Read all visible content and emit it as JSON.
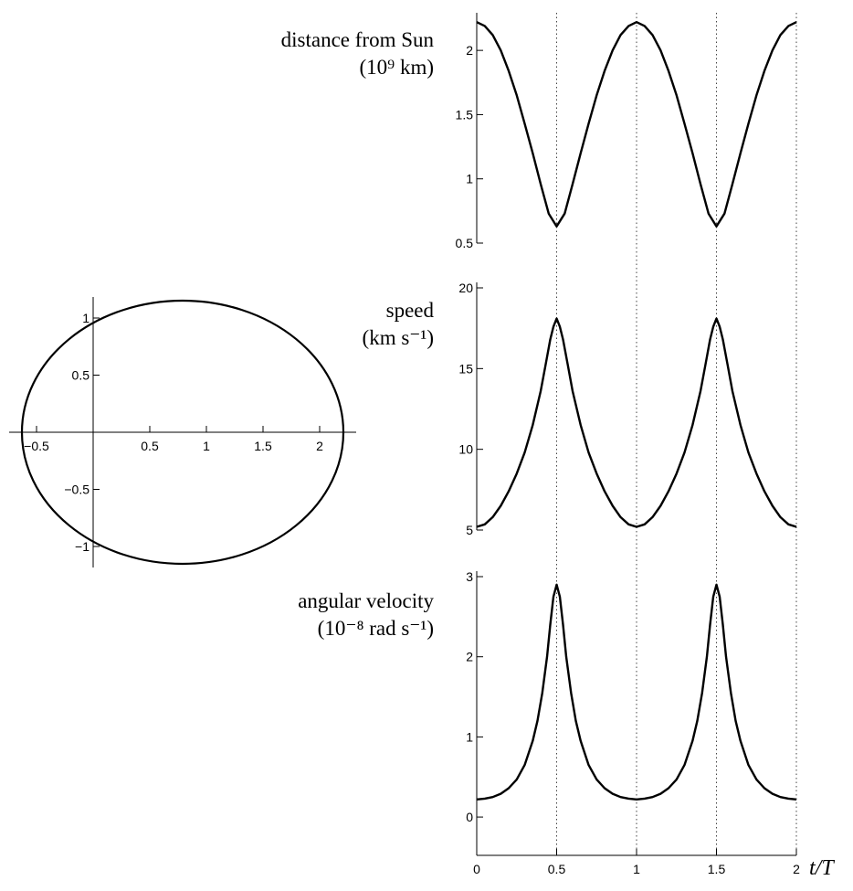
{
  "chart_data": [
    {
      "type": "line",
      "name": "orbit",
      "xlim": [
        -0.65,
        2.35
      ],
      "ylim": [
        -1.2,
        1.2
      ],
      "x_ticks": [
        -0.5,
        0.5,
        1,
        1.5,
        2
      ],
      "x_tick_labels": [
        "−0.5",
        "0.5",
        "1",
        "1.5",
        "2"
      ],
      "y_ticks": [
        -1,
        -0.5,
        0.5,
        1
      ],
      "y_tick_labels": [
        "−1",
        "−0.5",
        "0.5",
        "1"
      ],
      "ellipse": {
        "center_x": 0.8,
        "center_y": 0,
        "semi_major": 1.42,
        "semi_minor": 1.16
      }
    },
    {
      "type": "line",
      "name": "distance",
      "label_line1": "distance from Sun",
      "label_line2": "(10⁹ km)",
      "xlim": [
        0,
        2
      ],
      "ylim": [
        0.5,
        2.25
      ],
      "y_ticks": [
        0.5,
        1,
        1.5,
        2
      ],
      "y_tick_labels": [
        "0.5",
        "1",
        "1.5",
        "2"
      ],
      "x": [
        0,
        0.05,
        0.1,
        0.15,
        0.2,
        0.25,
        0.3,
        0.35,
        0.4,
        0.45,
        0.5,
        0.55,
        0.6,
        0.65,
        0.7,
        0.75,
        0.8,
        0.85,
        0.9,
        0.95,
        1.0,
        1.05,
        1.1,
        1.15,
        1.2,
        1.25,
        1.3,
        1.35,
        1.4,
        1.45,
        1.5,
        1.55,
        1.6,
        1.65,
        1.7,
        1.75,
        1.8,
        1.85,
        1.9,
        1.95,
        2.0
      ],
      "y": [
        2.22,
        2.19,
        2.12,
        2.0,
        1.84,
        1.65,
        1.43,
        1.2,
        0.96,
        0.73,
        0.63,
        0.73,
        0.96,
        1.2,
        1.43,
        1.65,
        1.84,
        2.0,
        2.12,
        2.19,
        2.22,
        2.19,
        2.12,
        2.0,
        1.84,
        1.65,
        1.43,
        1.2,
        0.96,
        0.73,
        0.63,
        0.73,
        0.96,
        1.2,
        1.43,
        1.65,
        1.84,
        2.0,
        2.12,
        2.19,
        2.22
      ]
    },
    {
      "type": "line",
      "name": "speed",
      "label_line1": "speed",
      "label_line2": "(km s⁻¹)",
      "xlim": [
        0,
        2
      ],
      "ylim": [
        5,
        20
      ],
      "y_ticks": [
        5,
        10,
        15,
        20
      ],
      "y_tick_labels": [
        "5",
        "10",
        "15",
        "20"
      ],
      "x": [
        0,
        0.05,
        0.1,
        0.15,
        0.2,
        0.25,
        0.3,
        0.35,
        0.4,
        0.43,
        0.46,
        0.48,
        0.5,
        0.52,
        0.54,
        0.57,
        0.6,
        0.65,
        0.7,
        0.75,
        0.8,
        0.85,
        0.9,
        0.95,
        1.0,
        1.05,
        1.1,
        1.15,
        1.2,
        1.25,
        1.3,
        1.35,
        1.4,
        1.43,
        1.46,
        1.48,
        1.5,
        1.52,
        1.54,
        1.57,
        1.6,
        1.65,
        1.7,
        1.75,
        1.8,
        1.85,
        1.9,
        1.95,
        2.0
      ],
      "y": [
        5.2,
        5.35,
        5.8,
        6.5,
        7.4,
        8.5,
        9.8,
        11.5,
        13.6,
        15.2,
        16.8,
        17.6,
        18.1,
        17.6,
        16.8,
        15.2,
        13.6,
        11.5,
        9.8,
        8.5,
        7.4,
        6.5,
        5.8,
        5.35,
        5.2,
        5.35,
        5.8,
        6.5,
        7.4,
        8.5,
        9.8,
        11.5,
        13.6,
        15.2,
        16.8,
        17.6,
        18.1,
        17.6,
        16.8,
        15.2,
        13.6,
        11.5,
        9.8,
        8.5,
        7.4,
        6.5,
        5.8,
        5.35,
        5.2
      ]
    },
    {
      "type": "line",
      "name": "angular_velocity",
      "label_line1": "angular velocity",
      "label_line2": "(10⁻⁸ rad s⁻¹)",
      "xlim": [
        0,
        2
      ],
      "ylim": [
        -0.25,
        3
      ],
      "y_ticks": [
        0,
        1,
        2,
        3
      ],
      "y_tick_labels": [
        "0",
        "1",
        "2",
        "3"
      ],
      "x_ticks": [
        0,
        0.5,
        1,
        1.5,
        2
      ],
      "x_tick_labels": [
        "0",
        "0.5",
        "1",
        "1.5",
        "2"
      ],
      "xlabel": "t/T",
      "x": [
        0,
        0.05,
        0.1,
        0.15,
        0.2,
        0.25,
        0.3,
        0.35,
        0.38,
        0.41,
        0.44,
        0.46,
        0.48,
        0.5,
        0.52,
        0.54,
        0.56,
        0.59,
        0.62,
        0.65,
        0.7,
        0.75,
        0.8,
        0.85,
        0.9,
        0.95,
        1.0,
        1.05,
        1.1,
        1.15,
        1.2,
        1.25,
        1.3,
        1.35,
        1.38,
        1.41,
        1.44,
        1.46,
        1.48,
        1.5,
        1.52,
        1.54,
        1.56,
        1.59,
        1.62,
        1.65,
        1.7,
        1.75,
        1.8,
        1.85,
        1.9,
        1.95,
        2.0
      ],
      "y": [
        0.22,
        0.23,
        0.25,
        0.29,
        0.36,
        0.47,
        0.65,
        0.95,
        1.2,
        1.55,
        2.0,
        2.4,
        2.75,
        2.9,
        2.75,
        2.4,
        2.0,
        1.55,
        1.2,
        0.95,
        0.65,
        0.47,
        0.36,
        0.29,
        0.25,
        0.23,
        0.22,
        0.23,
        0.25,
        0.29,
        0.36,
        0.47,
        0.65,
        0.95,
        1.2,
        1.55,
        2.0,
        2.4,
        2.75,
        2.9,
        2.75,
        2.4,
        2.0,
        1.55,
        1.2,
        0.95,
        0.65,
        0.47,
        0.36,
        0.29,
        0.25,
        0.23,
        0.22
      ]
    }
  ]
}
